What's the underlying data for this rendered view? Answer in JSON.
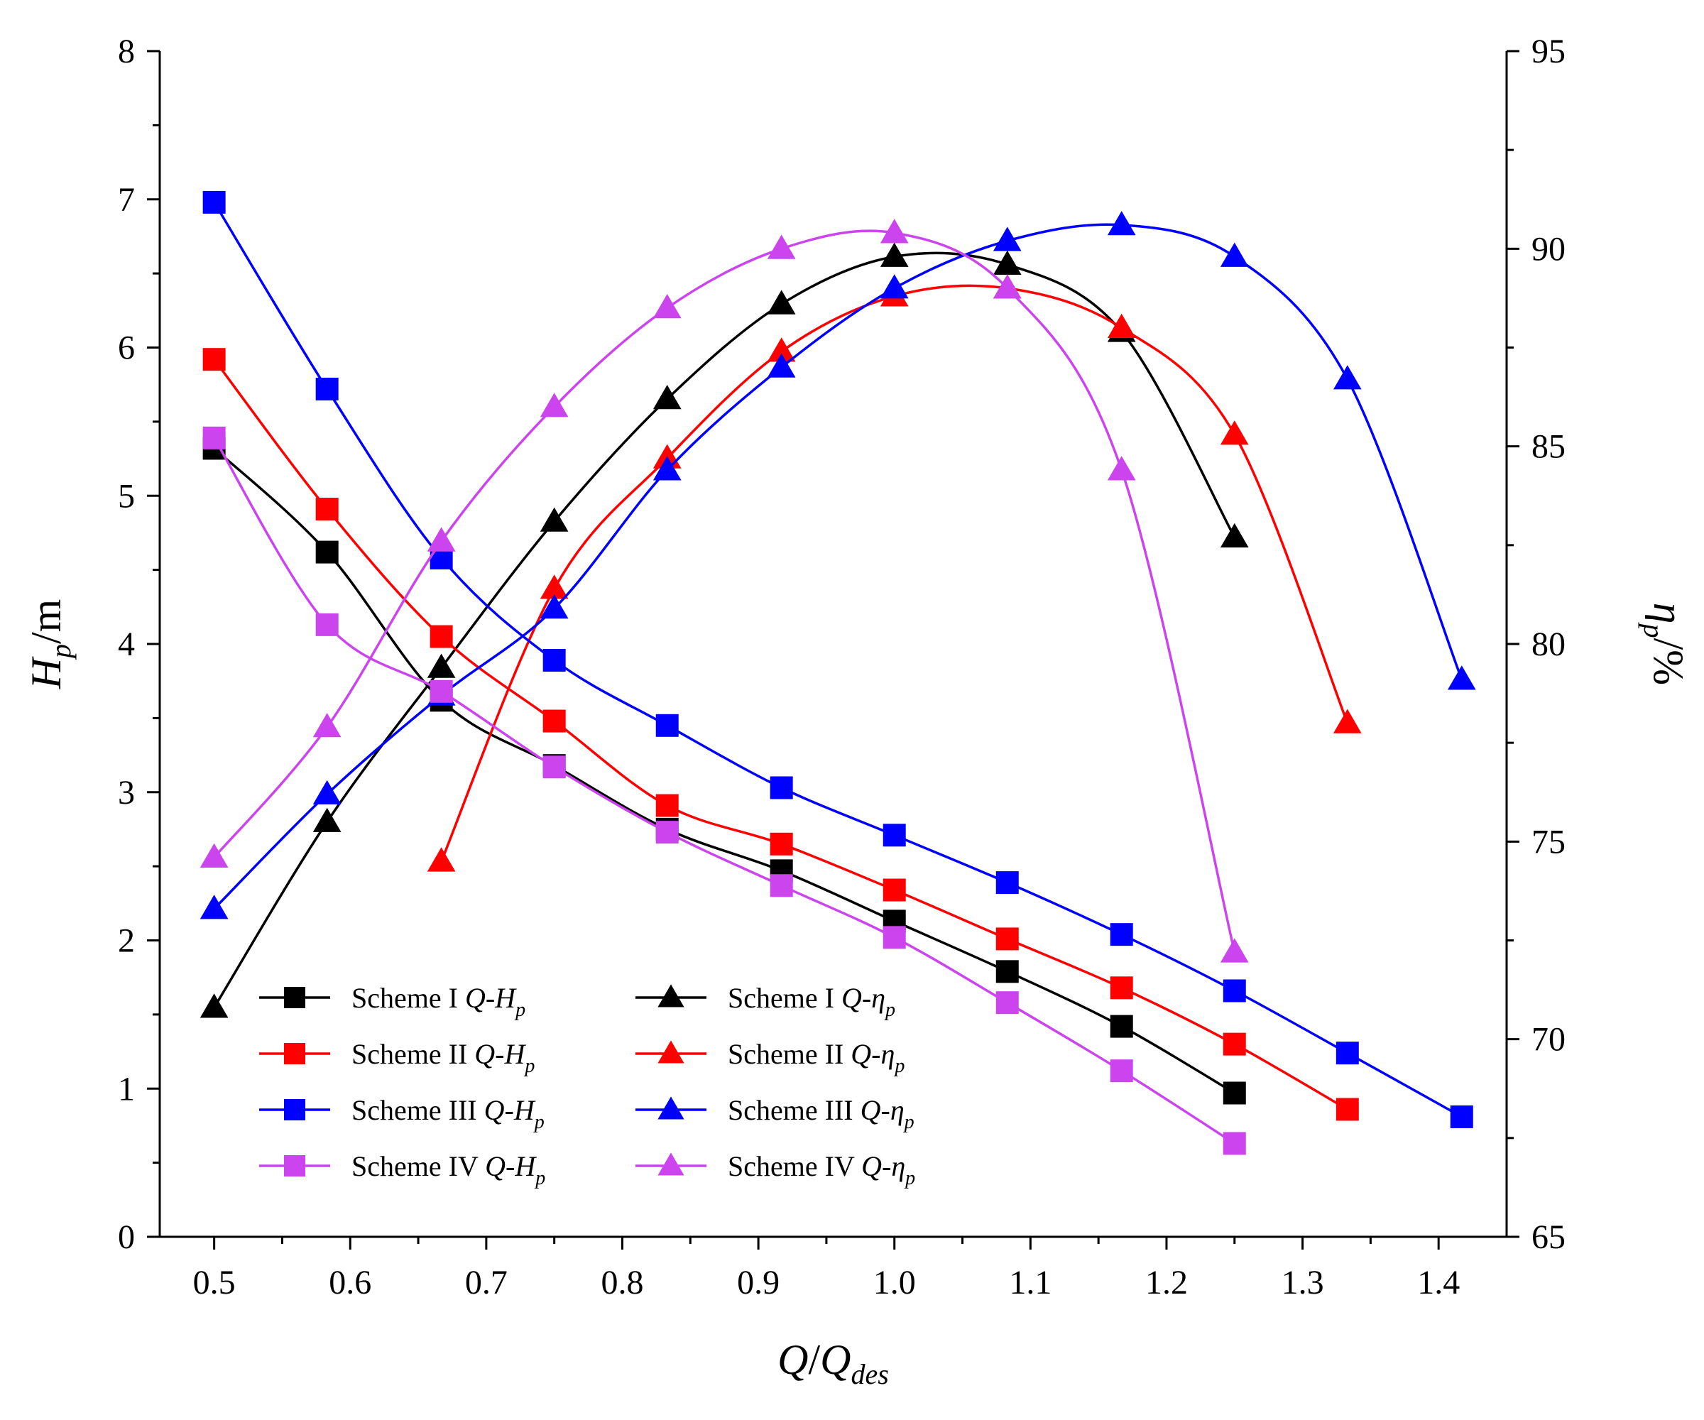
{
  "chart_data": {
    "type": "line",
    "xlabel": {
      "main": "Q",
      "slash": "/",
      "sub_main": "Q",
      "sub": "des"
    },
    "ylabel_left": {
      "main": "H",
      "sub": "p",
      "unit": "/m"
    },
    "ylabel_right": {
      "main": "η",
      "sub": "p",
      "unit": "/%"
    },
    "xlim": [
      0.46,
      1.45
    ],
    "ylim_left": [
      0,
      8
    ],
    "ylim_right": [
      65,
      95
    ],
    "x_ticks": [
      "0.5",
      "0.6",
      "0.7",
      "0.8",
      "0.9",
      "1.0",
      "1.1",
      "1.2",
      "1.3",
      "1.4"
    ],
    "y_left_ticks": [
      "0",
      "1",
      "2",
      "3",
      "4",
      "5",
      "6",
      "7",
      "8"
    ],
    "y_right_ticks": [
      "65",
      "70",
      "75",
      "80",
      "85",
      "90",
      "95"
    ],
    "grid": false,
    "legend_position": "lower-left",
    "series": [
      {
        "name": "Scheme I",
        "curve": "Q-H",
        "curve_sub": "p",
        "axis": "left",
        "marker": "square",
        "color": "#000000",
        "x": [
          0.5,
          0.583,
          0.667,
          0.75,
          0.833,
          0.917,
          1.0,
          1.083,
          1.167,
          1.25
        ],
        "y": [
          5.32,
          4.62,
          3.62,
          3.18,
          2.75,
          2.47,
          2.13,
          1.79,
          1.42,
          0.97
        ]
      },
      {
        "name": "Scheme I",
        "curve": "Q-η",
        "curve_sub": "p",
        "axis": "right",
        "marker": "triangle",
        "color": "#000000",
        "x": [
          0.5,
          0.583,
          0.667,
          0.75,
          0.833,
          0.917,
          1.0,
          1.083,
          1.167,
          1.25
        ],
        "y": [
          70.8,
          75.5,
          79.4,
          83.1,
          86.2,
          88.6,
          89.8,
          89.6,
          87.9,
          82.7
        ]
      },
      {
        "name": "Scheme II",
        "curve": "Q-H",
        "curve_sub": "p",
        "axis": "left",
        "marker": "square",
        "color": "#ff0000",
        "x": [
          0.5,
          0.583,
          0.667,
          0.75,
          0.833,
          0.917,
          1.0,
          1.083,
          1.167,
          1.25,
          1.333
        ],
        "y": [
          5.92,
          4.91,
          4.05,
          3.48,
          2.91,
          2.65,
          2.34,
          2.01,
          1.68,
          1.3,
          0.86
        ]
      },
      {
        "name": "Scheme II",
        "curve": "Q-η",
        "curve_sub": "p",
        "axis": "right",
        "marker": "triangle",
        "color": "#ff0000",
        "x": [
          0.667,
          0.75,
          0.833,
          0.917,
          1.0,
          1.083,
          1.167,
          1.25,
          1.333
        ],
        "y": [
          74.5,
          81.4,
          84.7,
          87.4,
          88.8,
          89.0,
          88.0,
          85.3,
          78.0
        ]
      },
      {
        "name": "Scheme III",
        "curve": "Q-H",
        "curve_sub": "p",
        "axis": "left",
        "marker": "square",
        "color": "#0000ff",
        "x": [
          0.5,
          0.583,
          0.667,
          0.75,
          0.833,
          0.917,
          1.0,
          1.083,
          1.167,
          1.25,
          1.333,
          1.417
        ],
        "y": [
          6.98,
          5.72,
          4.58,
          3.89,
          3.45,
          3.03,
          2.71,
          2.39,
          2.04,
          1.66,
          1.24,
          0.81
        ]
      },
      {
        "name": "Scheme III",
        "curve": "Q-η",
        "curve_sub": "p",
        "axis": "right",
        "marker": "triangle",
        "color": "#0000ff",
        "x": [
          0.5,
          0.583,
          0.667,
          0.75,
          0.833,
          0.917,
          1.0,
          1.083,
          1.167,
          1.25,
          1.333,
          1.417
        ],
        "y": [
          73.3,
          76.2,
          78.7,
          80.9,
          84.4,
          87.0,
          89.0,
          90.2,
          90.6,
          89.8,
          86.7,
          79.1
        ]
      },
      {
        "name": "Scheme IV",
        "curve": "Q-H",
        "curve_sub": "p",
        "axis": "left",
        "marker": "square",
        "color": "#cc44ee",
        "x": [
          0.5,
          0.583,
          0.667,
          0.75,
          0.833,
          0.917,
          1.0,
          1.083,
          1.167,
          1.25
        ],
        "y": [
          5.39,
          4.13,
          3.68,
          3.17,
          2.73,
          2.37,
          2.02,
          1.58,
          1.12,
          0.63
        ]
      },
      {
        "name": "Scheme IV",
        "curve": "Q-η",
        "curve_sub": "p",
        "axis": "right",
        "marker": "triangle",
        "color": "#cc44ee",
        "x": [
          0.5,
          0.583,
          0.667,
          0.75,
          0.833,
          0.917,
          1.0,
          1.083,
          1.167,
          1.25
        ],
        "y": [
          74.6,
          77.9,
          82.6,
          86.0,
          88.5,
          90.0,
          90.4,
          89.0,
          84.4,
          72.2
        ]
      }
    ]
  }
}
